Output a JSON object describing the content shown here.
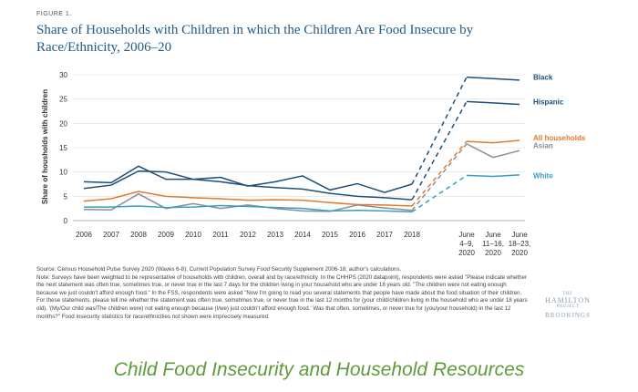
{
  "figure_label": "FIGURE 1.",
  "title": "Share of Households with Children in which the Children Are Food Insecure by Race/Ethnicity, 2006–20",
  "source": "Source: Census Household Pulse Survey 2020 (Waves 6-8); Current Population Survey Food Security Supplement 2006-18; author's calculations.",
  "note": "Note: Surveys have been weighted to be representative of households with children, overall and by race/ethnicity. In the CHHPS (2020 datapoint), respondents were asked \"Please indicate whether the next statement was often true, sometimes true, or never true in the last 7 days for the children living in your household who are under 18 years old. \"The children were not eating enough because we just couldn't afford enough food.\" In the FSS, respondents were asked \"Now I'm going to read you several statements that people have made about the food situation of their children. For these statements, please tell me whether the statement was often true, sometimes true, or never true in the last 12 months for (your child/children living in the household who are under 18 years old). '(My/Our child was/The children were) not eating enough because (I/we) just couldn't afford enough food.' Was that often, sometimes, or never true for (you/your household) in the last 12 months?\" Food insecurity statistics for race/ethnicities not shown were imprecisely measured.",
  "brand": {
    "top": "THE",
    "main": "HAMILTON",
    "top2": "PROJECT",
    "sub": "BROOKINGS"
  },
  "caption": "Child Food Insecurity and Household Resources",
  "chart_data": {
    "type": "line",
    "ylabel": "Share of housholds with children",
    "ylim": [
      0,
      30
    ],
    "yticks": [
      0,
      5,
      10,
      15,
      20,
      25,
      30
    ],
    "x_labels": [
      [
        "2006"
      ],
      [
        "2007"
      ],
      [
        "2008"
      ],
      [
        "2009"
      ],
      [
        "2010"
      ],
      [
        "2011"
      ],
      [
        "2012"
      ],
      [
        "2013"
      ],
      [
        "2014"
      ],
      [
        "2015"
      ],
      [
        "2016"
      ],
      [
        "2017"
      ],
      [
        "2018"
      ],
      [
        "June",
        "4–9,",
        "2020"
      ],
      [
        "June",
        "11–16,",
        "2020"
      ],
      [
        "June",
        "18–23,",
        "2020"
      ]
    ],
    "series": [
      {
        "name": "Black",
        "color": "#1e4f7a",
        "annual": [
          8.0,
          7.8,
          11.2,
          8.5,
          8.5,
          8.9,
          7.1,
          8.0,
          9.2,
          6.3,
          7.6,
          5.8,
          7.5
        ],
        "june2020": [
          29.5,
          29.2,
          28.9
        ]
      },
      {
        "name": "Hispanic",
        "color": "#1e4f7a",
        "annual": [
          6.6,
          7.3,
          10.2,
          10.0,
          8.5,
          8.0,
          7.2,
          6.8,
          6.5,
          5.6,
          5.0,
          4.7,
          4.3
        ],
        "june2020": [
          24.5,
          24.2,
          23.9
        ]
      },
      {
        "name": "All households",
        "color": "#e07b2e",
        "annual": [
          4.0,
          4.5,
          6.0,
          5.0,
          4.7,
          4.5,
          4.2,
          4.3,
          4.2,
          3.7,
          3.3,
          3.2,
          3.0
        ],
        "june2020": [
          16.3,
          16.0,
          16.5
        ]
      },
      {
        "name": "Asian",
        "color": "#8a8f96",
        "annual": [
          2.3,
          2.2,
          5.5,
          2.5,
          3.5,
          2.5,
          3.2,
          2.5,
          2.0,
          1.9,
          3.2,
          2.6,
          2.1
        ],
        "june2020": [
          15.8,
          13.0,
          14.4
        ]
      },
      {
        "name": "White",
        "color": "#3a9fc0",
        "annual": [
          2.8,
          2.8,
          3.0,
          2.7,
          2.8,
          3.1,
          2.9,
          2.7,
          2.5,
          2.0,
          2.1,
          2.0,
          1.8
        ],
        "june2020": [
          9.3,
          9.1,
          9.4
        ]
      }
    ]
  }
}
